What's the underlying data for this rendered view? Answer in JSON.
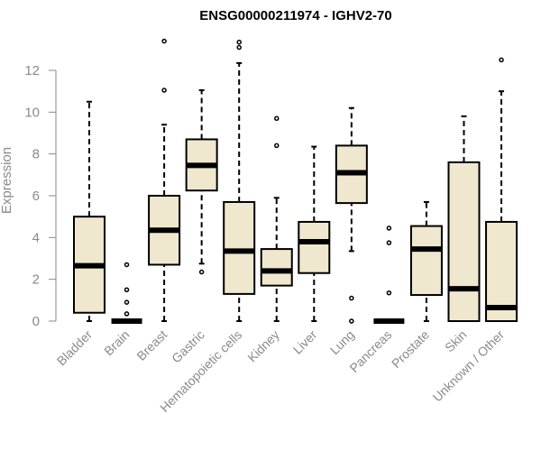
{
  "chart_data": {
    "type": "boxplot",
    "title": "ENSG00000211974 - IGHV2-70",
    "xlabel": "",
    "ylabel": "Expression",
    "ylim": [
      0,
      13.9
    ],
    "yticks": [
      0,
      2,
      4,
      6,
      8,
      10,
      12
    ],
    "grid": false,
    "box_color": "#efe8ce",
    "line_color": "#000000",
    "axis_color": "#8a8a8a",
    "categories": [
      "Bladder",
      "Brain",
      "Breast",
      "Gastric",
      "Hematopoietic cells",
      "Kidney",
      "Liver",
      "Lung",
      "Pancreas",
      "Prostate",
      "Skin",
      "Unknown / Other"
    ],
    "boxes": [
      {
        "name": "Bladder",
        "min": 0.0,
        "q1": 0.4,
        "median": 2.65,
        "q3": 5.0,
        "max": 10.5,
        "outliers": []
      },
      {
        "name": "Brain",
        "min": 0.0,
        "q1": 0.0,
        "median": 0.0,
        "q3": 0.0,
        "max": 0.0,
        "outliers": [
          0.35,
          0.9,
          1.5,
          2.7
        ]
      },
      {
        "name": "Breast",
        "min": 0.0,
        "q1": 2.7,
        "median": 4.35,
        "q3": 6.0,
        "max": 9.4,
        "outliers": [
          11.05,
          13.4
        ]
      },
      {
        "name": "Gastric",
        "min": 2.75,
        "q1": 6.25,
        "median": 7.45,
        "q3": 8.7,
        "max": 11.05,
        "outliers": [
          2.35
        ]
      },
      {
        "name": "Hematopoietic cells",
        "min": 0.0,
        "q1": 1.3,
        "median": 3.35,
        "q3": 5.7,
        "max": 12.35,
        "outliers": [
          13.1,
          13.35
        ]
      },
      {
        "name": "Kidney",
        "min": 0.0,
        "q1": 1.7,
        "median": 2.4,
        "q3": 3.45,
        "max": 5.9,
        "outliers": [
          8.4,
          9.7
        ]
      },
      {
        "name": "Liver",
        "min": 0.0,
        "q1": 2.3,
        "median": 3.8,
        "q3": 4.75,
        "max": 8.35,
        "outliers": []
      },
      {
        "name": "Lung",
        "min": 3.35,
        "q1": 5.65,
        "median": 7.1,
        "q3": 8.4,
        "max": 10.2,
        "outliers": [
          1.1,
          0.0
        ]
      },
      {
        "name": "Pancreas",
        "min": 0.0,
        "q1": 0.0,
        "median": 0.0,
        "q3": 0.0,
        "max": 0.0,
        "outliers": [
          1.35,
          3.75,
          4.45
        ]
      },
      {
        "name": "Prostate",
        "min": 0.0,
        "q1": 1.25,
        "median": 3.45,
        "q3": 4.55,
        "max": 5.7,
        "outliers": []
      },
      {
        "name": "Skin",
        "min": 0.0,
        "q1": 0.0,
        "median": 1.55,
        "q3": 7.6,
        "max": 9.8,
        "outliers": []
      },
      {
        "name": "Unknown / Other",
        "min": 0.0,
        "q1": 0.0,
        "median": 0.65,
        "q3": 4.75,
        "max": 11.0,
        "outliers": [
          12.5
        ]
      }
    ]
  }
}
